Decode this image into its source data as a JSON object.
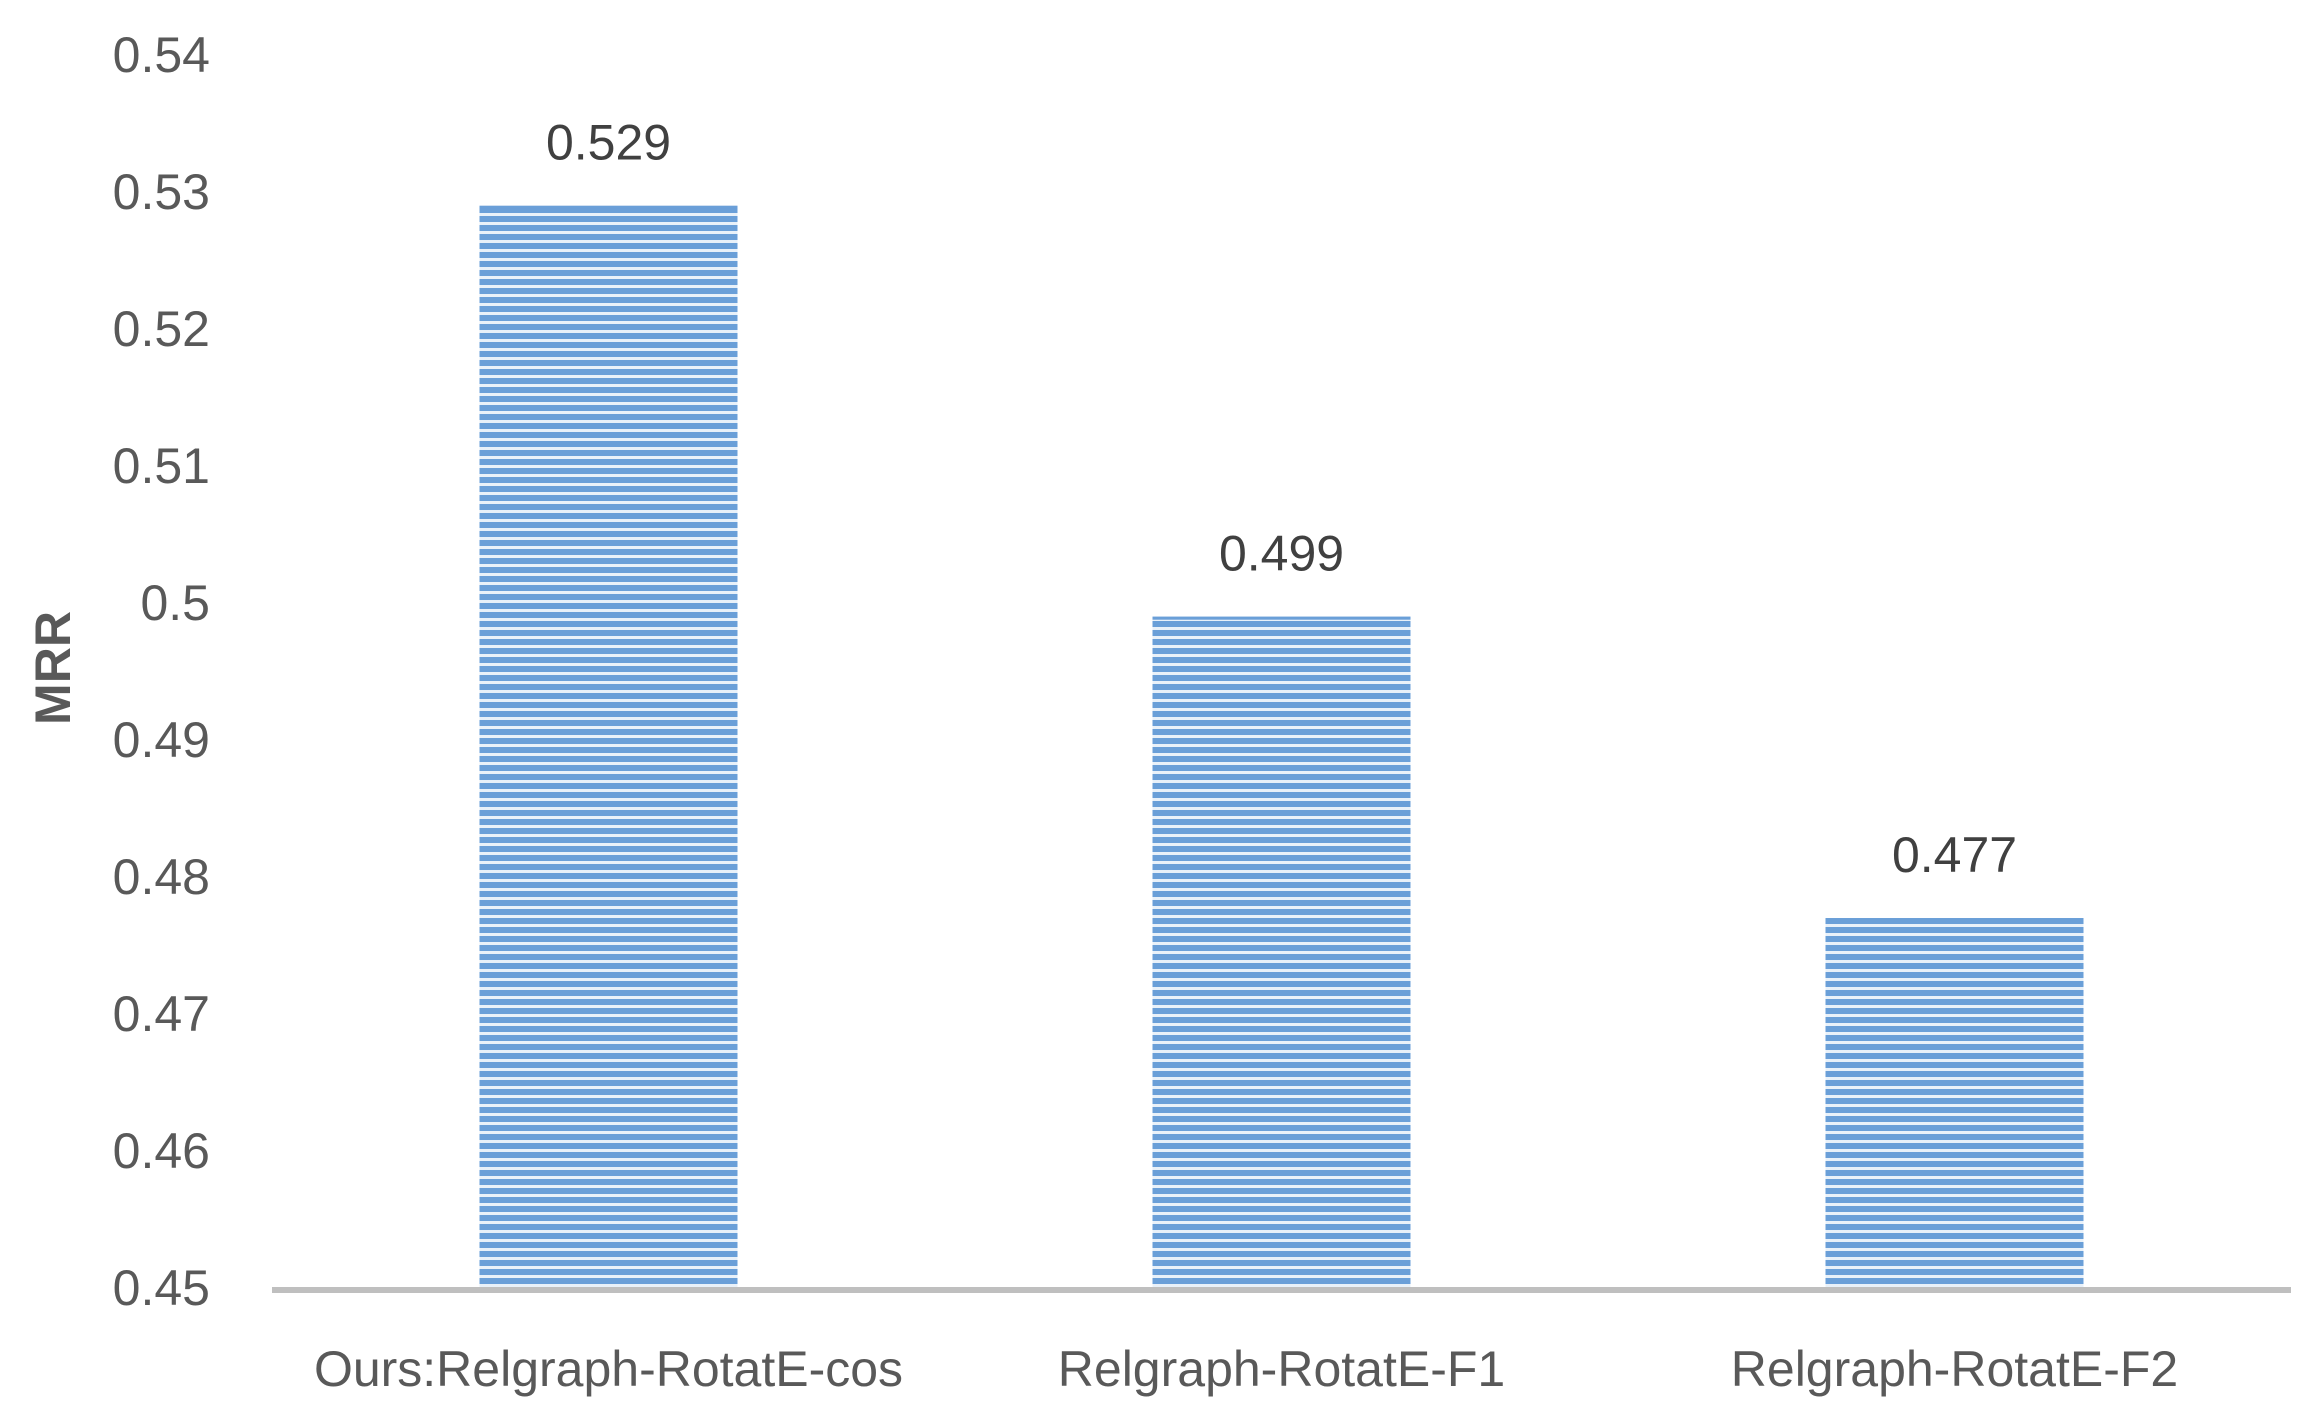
{
  "chart_data": {
    "type": "bar",
    "title": "",
    "xlabel": "",
    "ylabel": "MRR",
    "categories": [
      "Ours:Relgraph-RotatE-cos",
      "Relgraph-RotatE-F1",
      "Relgraph-RotatE-F2"
    ],
    "values": [
      0.529,
      0.499,
      0.477
    ],
    "data_labels": [
      "0.529",
      "0.499",
      "0.477"
    ],
    "ylim": [
      0.45,
      0.54
    ],
    "yticks": [
      "0.54",
      "0.53",
      "0.52",
      "0.51",
      "0.5",
      "0.49",
      "0.48",
      "0.47",
      "0.46",
      "0.45"
    ],
    "grid": false,
    "legend": "none",
    "colors": {
      "bar_fill": "#6a9fd8",
      "bar_stripe": "#ffffff",
      "axis": "#bfbfbf"
    }
  }
}
